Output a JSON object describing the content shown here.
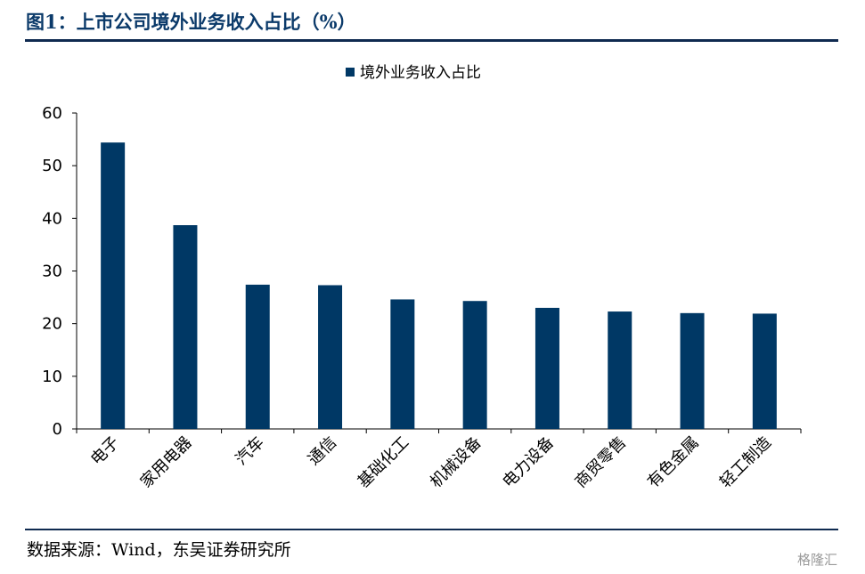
{
  "header": {
    "figure_title": "图1：上市公司境外业务收入占比（%）"
  },
  "footer": {
    "source": "数据来源：Wind，东吴证券研究所",
    "watermark": "格隆汇"
  },
  "colors": {
    "bar": "#003865",
    "title": "#0b3a6a",
    "rule": "#0f2a50"
  },
  "chart_data": {
    "type": "bar",
    "categories": [
      "电子",
      "家用电器",
      "汽车",
      "通信",
      "基础化工",
      "机械设备",
      "电力设备",
      "商贸零售",
      "有色金属",
      "轻工制造"
    ],
    "series": [
      {
        "name": "境外业务收入占比",
        "values": [
          54.4,
          38.7,
          27.4,
          27.3,
          24.6,
          24.3,
          23.0,
          22.3,
          22.0,
          21.9
        ]
      }
    ],
    "ylim": [
      0,
      60
    ],
    "yticks": [
      "0",
      "10",
      "20",
      "30",
      "40",
      "50",
      "60"
    ],
    "legend_position": "top-center",
    "grid": false
  }
}
